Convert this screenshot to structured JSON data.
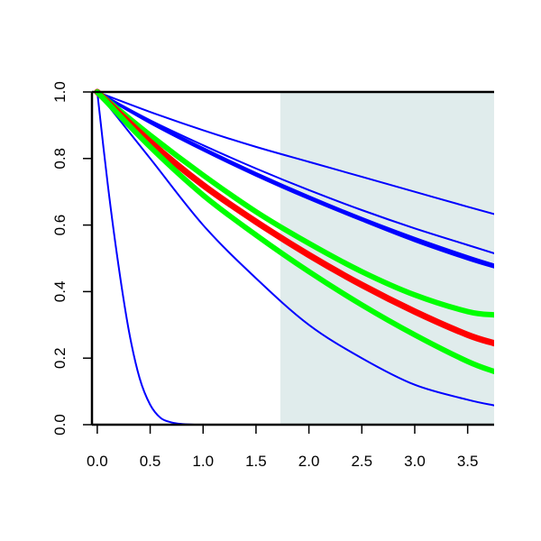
{
  "chart_data": {
    "type": "line",
    "title": "",
    "xlabel": "",
    "ylabel": "",
    "xlim": [
      -0.05,
      3.75
    ],
    "ylim": [
      0,
      1
    ],
    "x_ticks": [
      0.0,
      0.5,
      1.0,
      1.5,
      2.0,
      2.5,
      3.0,
      3.5
    ],
    "x_tick_labels": [
      "0.0",
      "0.5",
      "1.0",
      "1.5",
      "2.0",
      "2.5",
      "3.0",
      "3.5"
    ],
    "y_ticks": [
      0.0,
      0.2,
      0.4,
      0.6,
      0.8,
      1.0
    ],
    "y_tick_labels": [
      "0.0",
      "0.2",
      "0.4",
      "0.6",
      "0.8",
      "1.0"
    ],
    "shaded_region": {
      "x_start": 1.73,
      "x_end": 3.75,
      "color": "#e0ecec"
    },
    "grid": false,
    "legend": "none",
    "series": [
      {
        "color": "#0000ff",
        "weight": "thin",
        "x": [
          0,
          0.1,
          0.2,
          0.3,
          0.4,
          0.5,
          0.6,
          0.7,
          0.8,
          0.9,
          1.0,
          1.2,
          1.5,
          2.0,
          2.5,
          3.0,
          3.5,
          3.75
        ],
        "values": [
          1.0,
          0.72,
          0.48,
          0.28,
          0.14,
          0.06,
          0.02,
          0.007,
          0.002,
          0.0005,
          0.0,
          0.0,
          0.0,
          0.0,
          0.0,
          0.0,
          0.0,
          0.0
        ]
      },
      {
        "color": "#0000ff",
        "weight": "thin",
        "x": [
          0,
          0.5,
          1.0,
          1.5,
          2.0,
          2.5,
          3.0,
          3.5,
          3.75
        ],
        "values": [
          1.0,
          0.8,
          0.6,
          0.44,
          0.3,
          0.2,
          0.12,
          0.075,
          0.058
        ]
      },
      {
        "color": "#0000ff",
        "weight": "thin",
        "x": [
          0,
          0.5,
          1.0,
          1.5,
          2.0,
          2.5,
          3.0,
          3.5,
          3.75
        ],
        "values": [
          1.0,
          0.94,
          0.885,
          0.835,
          0.79,
          0.745,
          0.7,
          0.655,
          0.633
        ]
      },
      {
        "color": "#0000ff",
        "weight": "thin",
        "x": [
          0,
          0.5,
          1.0,
          1.5,
          2.0,
          2.5,
          3.0,
          3.5,
          3.75
        ],
        "values": [
          1.0,
          0.915,
          0.84,
          0.77,
          0.705,
          0.645,
          0.59,
          0.54,
          0.515
        ]
      },
      {
        "color": "#0000ff",
        "weight": "medium",
        "x": [
          0,
          0.5,
          1.0,
          1.5,
          2.0,
          2.5,
          3.0,
          3.5,
          3.75
        ],
        "values": [
          1.0,
          0.91,
          0.83,
          0.755,
          0.685,
          0.62,
          0.56,
          0.505,
          0.48
        ]
      },
      {
        "color": "#0000ff",
        "weight": "medium",
        "x": [
          0,
          0.5,
          1.0,
          1.5,
          2.0,
          2.5,
          3.0,
          3.5,
          3.75
        ],
        "values": [
          1.0,
          0.908,
          0.826,
          0.75,
          0.68,
          0.615,
          0.553,
          0.498,
          0.474
        ]
      },
      {
        "color": "#00ff00",
        "weight": "thick",
        "x": [
          0,
          0.5,
          1.0,
          1.5,
          2.0,
          2.5,
          3.0,
          3.5,
          3.75
        ],
        "values": [
          1.0,
          0.87,
          0.75,
          0.64,
          0.545,
          0.46,
          0.39,
          0.34,
          0.33
        ]
      },
      {
        "color": "#ff0000",
        "weight": "thickest",
        "x": [
          0,
          0.5,
          1.0,
          1.5,
          2.0,
          2.5,
          3.0,
          3.5,
          3.75
        ],
        "values": [
          1.0,
          0.85,
          0.72,
          0.61,
          0.51,
          0.42,
          0.34,
          0.27,
          0.245
        ]
      },
      {
        "color": "#00ff00",
        "weight": "thick",
        "x": [
          0,
          0.5,
          1.0,
          1.5,
          2.0,
          2.5,
          3.0,
          3.5,
          3.75
        ],
        "values": [
          1.0,
          0.835,
          0.69,
          0.57,
          0.46,
          0.36,
          0.27,
          0.19,
          0.16
        ]
      }
    ]
  }
}
